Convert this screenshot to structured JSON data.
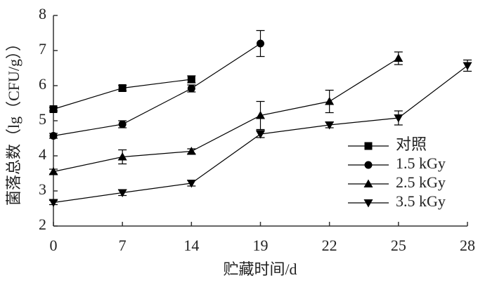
{
  "chart_data": {
    "type": "line",
    "x_label": "贮藏时间/d",
    "y_label": "菌落总数（lg（CFU/g））",
    "categories": [
      0,
      7,
      14,
      19,
      22,
      25,
      28
    ],
    "ylim": [
      2,
      8
    ],
    "yticks": [
      2,
      3,
      4,
      5,
      6,
      7,
      8
    ],
    "series": [
      {
        "name": "对照",
        "color": "#000000",
        "marker": "square",
        "values": [
          5.33,
          5.93,
          6.18,
          null,
          null,
          null,
          null
        ],
        "errors": [
          0.05,
          0.08,
          0.1,
          null,
          null,
          null,
          null
        ]
      },
      {
        "name": "1.5 kGy",
        "color": "#000000",
        "marker": "circle",
        "values": [
          4.57,
          4.9,
          5.92,
          7.2,
          null,
          null,
          null
        ],
        "errors": [
          0.07,
          0.1,
          0.1,
          0.37,
          null,
          null,
          null
        ]
      },
      {
        "name": "2.5 kGy",
        "color": "#000000",
        "marker": "triangle-up",
        "values": [
          3.55,
          3.97,
          4.13,
          5.15,
          5.55,
          6.78,
          null
        ],
        "errors": [
          0.07,
          0.2,
          0.07,
          0.4,
          0.32,
          0.18,
          null
        ]
      },
      {
        "name": "3.5 kGy",
        "color": "#000000",
        "marker": "triangle-down",
        "values": [
          2.67,
          2.95,
          3.22,
          4.62,
          4.88,
          5.08,
          6.57
        ],
        "errors": [
          0.06,
          0.08,
          0.08,
          0.1,
          0.08,
          0.2,
          0.16
        ]
      }
    ]
  }
}
